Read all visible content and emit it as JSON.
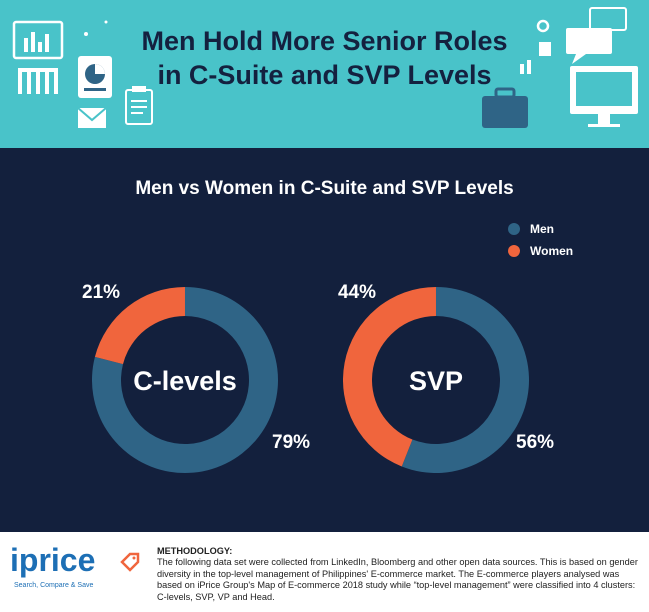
{
  "header": {
    "title_line1": "Men Hold More Senior Roles",
    "title_line2": "in C-Suite and SVP Levels"
  },
  "chart_data": {
    "type": "pie",
    "title": "Men vs Women in C-Suite and SVP Levels",
    "legend": [
      {
        "name": "Men",
        "color": "#2f6486"
      },
      {
        "name": "Women",
        "color": "#f0653d"
      }
    ],
    "legend_placement": "top-right",
    "charts": [
      {
        "name": "C-levels",
        "slices": [
          {
            "label": "Men",
            "value": 79,
            "text": "79%"
          },
          {
            "label": "Women",
            "value": 21,
            "text": "21%"
          }
        ]
      },
      {
        "name": "SVP",
        "slices": [
          {
            "label": "Men",
            "value": 56,
            "text": "56%"
          },
          {
            "label": "Women",
            "value": 44,
            "text": "44%"
          }
        ]
      }
    ]
  },
  "footer": {
    "logo_text": "iprice",
    "logo_tagline": "Search, Compare & Save",
    "methodology_title": "METHODOLOGY:",
    "methodology_text": "The following data set were collected from LinkedIn, Bloomberg and other open data sources. This is based on gender diversity in the top-level management of Philippines' E-commerce market. The E-commerce players analysed was based on iPrice Group's Map of E-commerce 2018 study while “top-level management” were classified into 4 clusters: C-levels, SVP, VP and Head."
  }
}
